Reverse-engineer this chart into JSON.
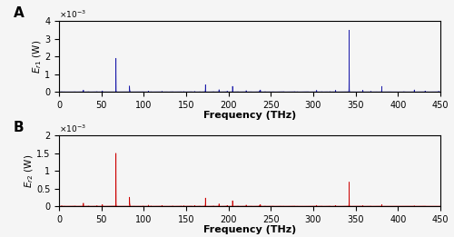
{
  "title_A": "A",
  "title_B": "B",
  "xlabel": "Frequency (THz)",
  "ylabel_A": "$E_{r1}$ (W)",
  "ylabel_B": "$E_{r2}$ (W)",
  "freq_min": 0,
  "freq_max": 450,
  "ylim_A": [
    0,
    0.004
  ],
  "ylim_B": [
    0,
    0.002
  ],
  "yticks_A": [
    0,
    0.001,
    0.002,
    0.003,
    0.004
  ],
  "yticks_B": [
    0,
    0.0005,
    0.001,
    0.0015,
    0.002
  ],
  "yticklabels_A": [
    "0",
    "1",
    "2",
    "3",
    "4"
  ],
  "yticklabels_B": [
    "0",
    "0.5",
    "1",
    "1.5",
    "2"
  ],
  "xticks": [
    0,
    50,
    100,
    150,
    200,
    250,
    300,
    350,
    400,
    450
  ],
  "color_A": "#1a1aaa",
  "color_B": "#cc0000",
  "background_color": "#f5f5f5",
  "linewidth": 0.5
}
